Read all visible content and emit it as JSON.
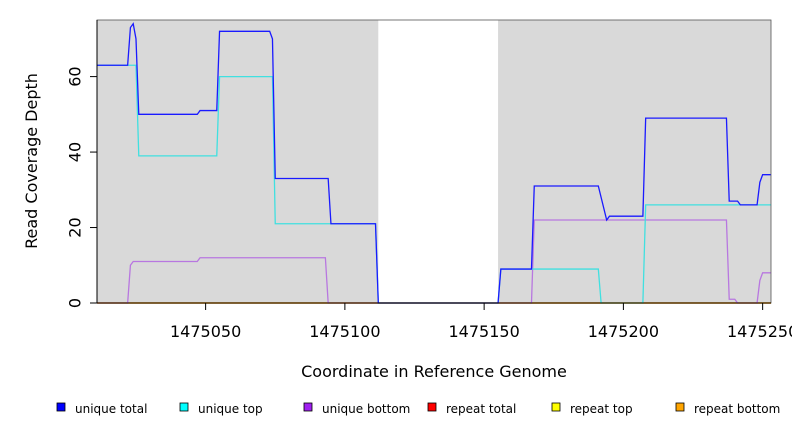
{
  "chart_data": {
    "type": "line",
    "xlabel": "Coordinate in Reference Genome",
    "ylabel": "Read Coverage Depth",
    "xlim": [
      1475011,
      1475253
    ],
    "ylim": [
      0,
      75
    ],
    "x_ticks": [
      1475050,
      1475100,
      1475150,
      1475200,
      1475250
    ],
    "y_ticks": [
      0,
      20,
      40,
      60
    ],
    "background": "#d9d9d9",
    "uncovered_region": [
      1475112,
      1475155
    ],
    "legend_placement": "bottom",
    "series": [
      {
        "name": "unique total",
        "color": "#1a1aff",
        "x": [
          1475011,
          1475022,
          1475023,
          1475024,
          1475025,
          1475026,
          1475047,
          1475048,
          1475054,
          1475055,
          1475073,
          1475074,
          1475075,
          1475094,
          1475095,
          1475111,
          1475112,
          1475155,
          1475156,
          1475167,
          1475168,
          1475191,
          1475194,
          1475195,
          1475207,
          1475208,
          1475237,
          1475238,
          1475241,
          1475242,
          1475248,
          1475249,
          1475250,
          1475253
        ],
        "y": [
          63,
          63,
          73,
          74,
          70,
          50,
          50,
          51,
          51,
          72,
          72,
          70,
          33,
          33,
          21,
          21,
          0,
          0,
          9,
          9,
          31,
          31,
          22,
          23,
          23,
          49,
          49,
          27,
          27,
          26,
          26,
          32,
          34,
          34
        ]
      },
      {
        "name": "unique top",
        "color": "#40e0e0",
        "x": [
          1475011,
          1475025,
          1475026,
          1475054,
          1475055,
          1475074,
          1475075,
          1475111,
          1475112,
          1475155,
          1475156,
          1475191,
          1475192,
          1475207,
          1475208,
          1475253
        ],
        "y": [
          63,
          63,
          39,
          39,
          60,
          60,
          21,
          21,
          0,
          0,
          9,
          9,
          0,
          0,
          26,
          26
        ]
      },
      {
        "name": "unique bottom",
        "color": "#b877e0",
        "x": [
          1475011,
          1475022,
          1475023,
          1475024,
          1475047,
          1475048,
          1475093,
          1475094,
          1475167,
          1475168,
          1475237,
          1475238,
          1475240,
          1475241,
          1475248,
          1475249,
          1475250,
          1475253
        ],
        "y": [
          0,
          0,
          10,
          11,
          11,
          12,
          12,
          0,
          0,
          22,
          22,
          1,
          1,
          0,
          0,
          6,
          8,
          8
        ]
      },
      {
        "name": "repeat total",
        "color": "#ff0000",
        "x": [
          1475011,
          1475253
        ],
        "y": [
          0,
          0
        ]
      },
      {
        "name": "repeat top",
        "color": "#ffff00",
        "x": [
          1475011,
          1475253
        ],
        "y": [
          0,
          0
        ]
      },
      {
        "name": "repeat bottom",
        "color": "#ffa500",
        "x": [
          1475011,
          1475253
        ],
        "y": [
          0,
          0
        ]
      }
    ],
    "legend": [
      {
        "label": "unique total",
        "color": "#0000ff"
      },
      {
        "label": "unique top",
        "color": "#00ffff"
      },
      {
        "label": "unique bottom",
        "color": "#a020f0"
      },
      {
        "label": "repeat total",
        "color": "#ff0000"
      },
      {
        "label": "repeat top",
        "color": "#ffff00"
      },
      {
        "label": "repeat bottom",
        "color": "#ffa500"
      }
    ]
  }
}
